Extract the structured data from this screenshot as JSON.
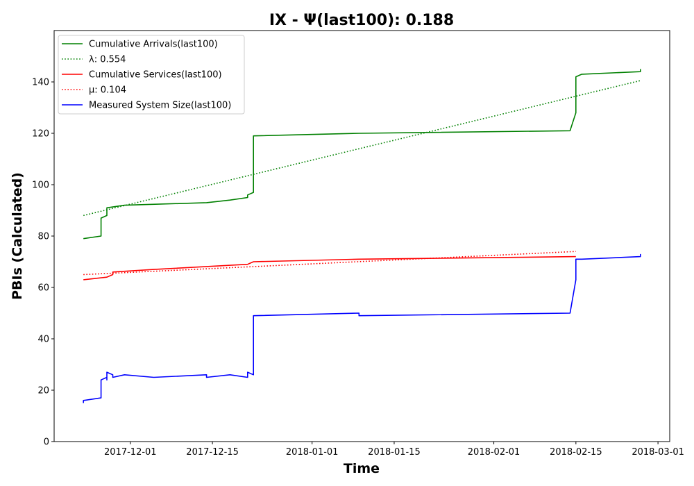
{
  "chart_data": {
    "type": "line",
    "title": "IX -  Ψ(last100): 0.188",
    "xlabel": "Time",
    "ylabel": "PBIs (Calculated)",
    "xlim": [
      "2017-11-18",
      "2018-03-03"
    ],
    "ylim": [
      0,
      160
    ],
    "x_ticks": [
      "2017-12-01",
      "2017-12-15",
      "2018-01-01",
      "2018-01-15",
      "2018-02-01",
      "2018-02-15",
      "2018-03-01"
    ],
    "y_ticks": [
      0,
      20,
      40,
      60,
      80,
      100,
      120,
      140
    ],
    "grid": false,
    "legend_position": "upper-left",
    "series": [
      {
        "name": "Cumulative Arrivals(last100)",
        "style": "solid",
        "color": "#008000",
        "points": [
          [
            "2017-11-23",
            79
          ],
          [
            "2017-11-26",
            80
          ],
          [
            "2017-11-26",
            87
          ],
          [
            "2017-11-27",
            88
          ],
          [
            "2017-11-27",
            89
          ],
          [
            "2017-11-27",
            91
          ],
          [
            "2017-11-30",
            92
          ],
          [
            "2017-12-14",
            93
          ],
          [
            "2017-12-18",
            94
          ],
          [
            "2017-12-21",
            95
          ],
          [
            "2017-12-21",
            96
          ],
          [
            "2017-12-22",
            97
          ],
          [
            "2017-12-22",
            110
          ],
          [
            "2017-12-22",
            119
          ],
          [
            "2018-01-09",
            120
          ],
          [
            "2018-02-14",
            121
          ],
          [
            "2018-02-15",
            128
          ],
          [
            "2018-02-15",
            142
          ],
          [
            "2018-02-16",
            143
          ],
          [
            "2018-02-26",
            144
          ],
          [
            "2018-02-26",
            145
          ]
        ]
      },
      {
        "name": "λ: 0.554",
        "style": "dotted",
        "color": "#008000",
        "points": [
          [
            "2017-11-23",
            88
          ],
          [
            "2018-02-26",
            140.5
          ]
        ]
      },
      {
        "name": "Cumulative Services(last100)",
        "style": "solid",
        "color": "#ff0000",
        "points": [
          [
            "2017-11-23",
            63
          ],
          [
            "2017-11-27",
            64
          ],
          [
            "2017-11-28",
            65
          ],
          [
            "2017-11-28",
            66
          ],
          [
            "2017-12-05",
            67
          ],
          [
            "2017-12-21",
            69
          ],
          [
            "2017-12-22",
            70
          ],
          [
            "2018-01-09",
            71
          ],
          [
            "2018-02-15",
            72
          ]
        ]
      },
      {
        "name": "μ: 0.104",
        "style": "dotted",
        "color": "#ff0000",
        "points": [
          [
            "2017-11-23",
            65
          ],
          [
            "2018-02-15",
            74
          ]
        ]
      },
      {
        "name": "Measured System Size(last100)",
        "style": "solid",
        "color": "#0000ff",
        "points": [
          [
            "2017-11-23",
            15
          ],
          [
            "2017-11-23",
            16
          ],
          [
            "2017-11-26",
            17
          ],
          [
            "2017-11-26",
            24
          ],
          [
            "2017-11-27",
            25
          ],
          [
            "2017-11-27",
            24
          ],
          [
            "2017-11-27",
            27
          ],
          [
            "2017-11-28",
            26
          ],
          [
            "2017-11-28",
            25
          ],
          [
            "2017-11-30",
            26
          ],
          [
            "2017-12-05",
            25
          ],
          [
            "2017-12-14",
            26
          ],
          [
            "2017-12-14",
            25
          ],
          [
            "2017-12-18",
            26
          ],
          [
            "2017-12-21",
            25
          ],
          [
            "2017-12-21",
            27
          ],
          [
            "2017-12-22",
            26
          ],
          [
            "2017-12-22",
            40
          ],
          [
            "2017-12-22",
            49
          ],
          [
            "2018-01-09",
            50
          ],
          [
            "2018-01-09",
            49
          ],
          [
            "2018-02-14",
            50
          ],
          [
            "2018-02-15",
            63
          ],
          [
            "2018-02-15",
            71
          ],
          [
            "2018-02-16",
            71
          ],
          [
            "2018-02-26",
            72
          ],
          [
            "2018-02-26",
            73
          ]
        ]
      }
    ]
  }
}
